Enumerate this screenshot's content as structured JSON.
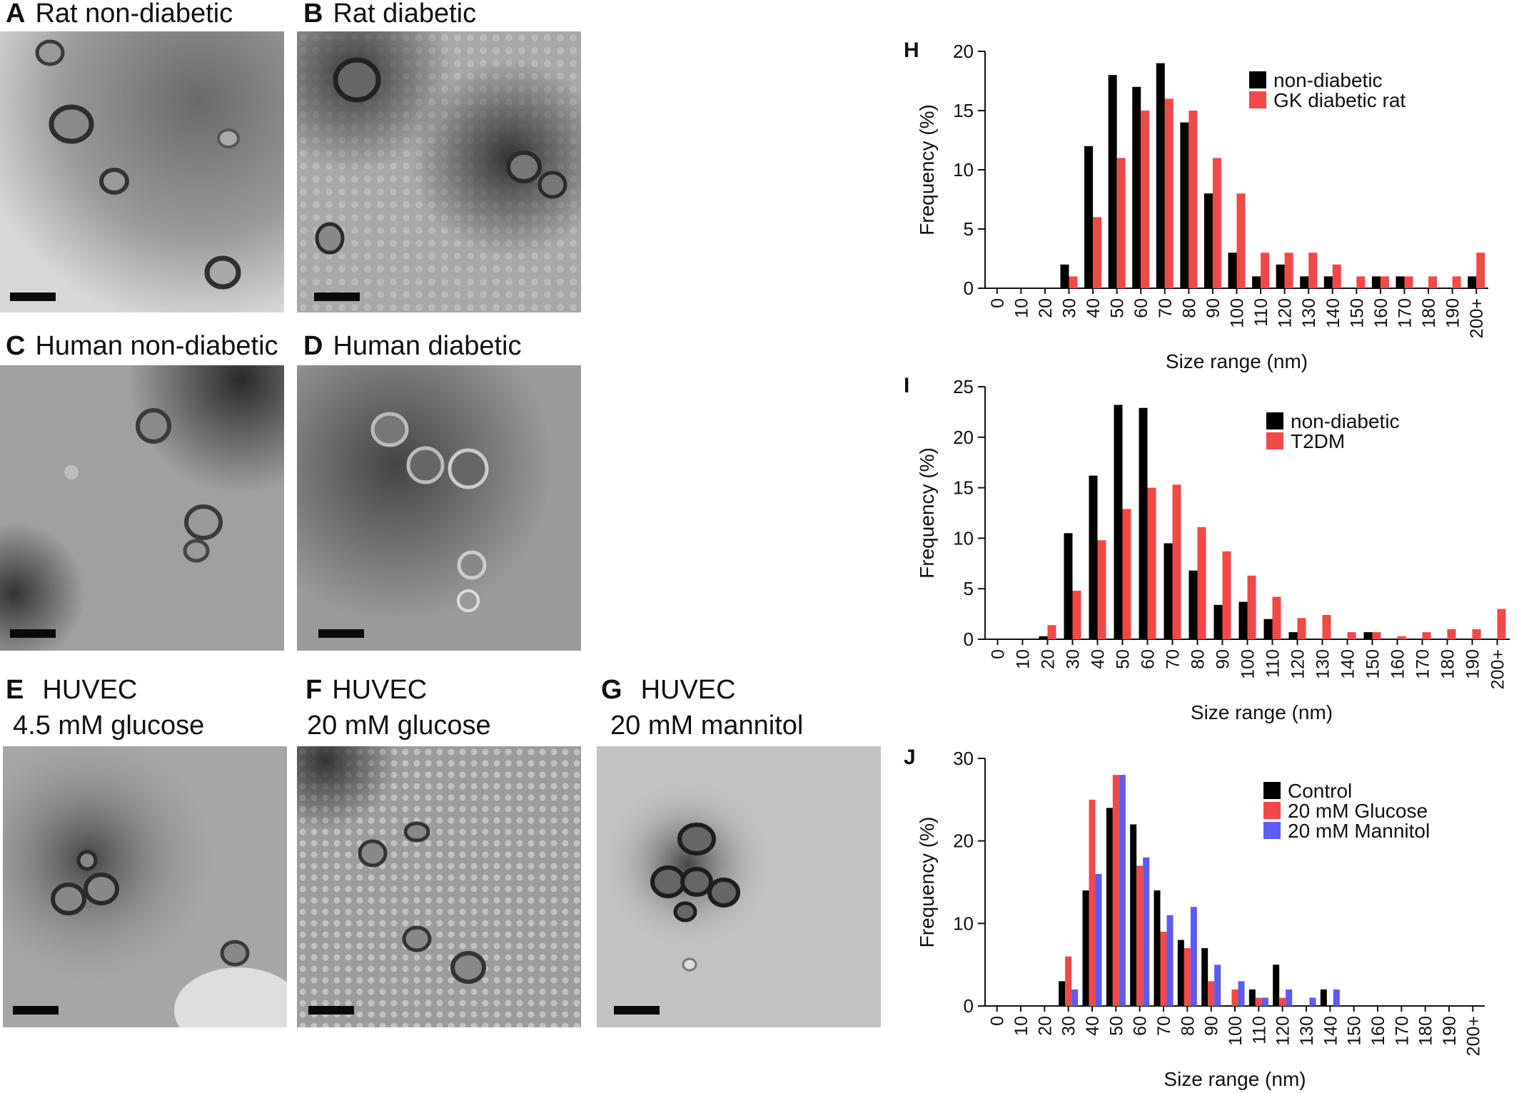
{
  "panels": {
    "A": {
      "letter": "A",
      "title": "Rat non-diabetic"
    },
    "B": {
      "letter": "B",
      "title": "Rat diabetic"
    },
    "C": {
      "letter": "C",
      "title": "Human non-diabetic"
    },
    "D": {
      "letter": "D",
      "title": "Human diabetic"
    },
    "E": {
      "letter": "E",
      "title": "HUVEC",
      "subtitle": "4.5 mM glucose"
    },
    "F": {
      "letter": "F",
      "title": "HUVEC",
      "subtitle": "20 mM glucose"
    },
    "G": {
      "letter": "G",
      "title": "HUVEC",
      "subtitle": "20 mM mannitol"
    }
  },
  "colors": {
    "black": "#000000",
    "red": "#f24848",
    "blue": "#5b5bf5"
  },
  "chart_data": [
    {
      "id": "H",
      "letter": "H",
      "type": "bar",
      "xlabel": "Size range (nm)",
      "ylabel": "Frequency (%)",
      "ylim": [
        0,
        20
      ],
      "yticks": [
        0,
        5,
        10,
        15,
        20
      ],
      "categories": [
        "0",
        "10",
        "20",
        "30",
        "40",
        "50",
        "60",
        "70",
        "80",
        "90",
        "100",
        "110",
        "120",
        "130",
        "140",
        "150",
        "160",
        "170",
        "180",
        "190",
        "200+"
      ],
      "legend_position": "top-right",
      "series": [
        {
          "name": "non-diabetic",
          "color": "#000000",
          "values": [
            0,
            0,
            0,
            2,
            12,
            18,
            17,
            19,
            14,
            8,
            3,
            1,
            2,
            1,
            1,
            0,
            1,
            1,
            0,
            0,
            1
          ]
        },
        {
          "name": "GK diabetic rat",
          "color": "#f24848",
          "values": [
            0,
            0,
            0,
            1,
            6,
            11,
            15,
            16,
            15,
            11,
            8,
            3,
            3,
            3,
            2,
            1,
            1,
            1,
            1,
            1,
            3
          ]
        }
      ]
    },
    {
      "id": "I",
      "letter": "I",
      "type": "bar",
      "xlabel": "Size range (nm)",
      "ylabel": "Frequency (%)",
      "ylim": [
        0,
        25
      ],
      "yticks": [
        0,
        5,
        10,
        15,
        20,
        25
      ],
      "categories": [
        "0",
        "10",
        "20",
        "30",
        "40",
        "50",
        "60",
        "70",
        "80",
        "90",
        "100",
        "110",
        "120",
        "130",
        "140",
        "150",
        "160",
        "170",
        "180",
        "190",
        "200+"
      ],
      "legend_position": "top-right",
      "series": [
        {
          "name": "non-diabetic",
          "color": "#000000",
          "values": [
            0,
            0,
            0.3,
            10.5,
            16.2,
            23.2,
            22.9,
            9.5,
            6.8,
            3.4,
            3.7,
            2,
            0.7,
            0,
            0,
            0.7,
            0,
            0,
            0,
            0,
            0
          ]
        },
        {
          "name": "T2DM",
          "color": "#f24848",
          "values": [
            0,
            0,
            1.4,
            4.8,
            9.8,
            12.9,
            15,
            15.3,
            11.1,
            8.7,
            6.3,
            4.2,
            2.1,
            2.4,
            0.7,
            0.7,
            0.3,
            0.7,
            1,
            1,
            3
          ]
        }
      ]
    },
    {
      "id": "J",
      "letter": "J",
      "type": "bar",
      "xlabel": "Size range (nm)",
      "ylabel": "Frequency (%)",
      "ylim": [
        0,
        30
      ],
      "yticks": [
        0,
        10,
        20,
        30
      ],
      "categories": [
        "0",
        "10",
        "20",
        "30",
        "40",
        "50",
        "60",
        "70",
        "80",
        "90",
        "100",
        "110",
        "120",
        "130",
        "140",
        "150",
        "160",
        "170",
        "180",
        "190",
        "200+"
      ],
      "legend_position": "top-right",
      "series": [
        {
          "name": "Control",
          "color": "#000000",
          "values": [
            0,
            0,
            0,
            3,
            14,
            24,
            22,
            14,
            8,
            7,
            0,
            2,
            5,
            0,
            2,
            0,
            0,
            0,
            0,
            0,
            0
          ]
        },
        {
          "name": "20 mM Glucose",
          "color": "#f24848",
          "values": [
            0,
            0,
            0,
            6,
            25,
            28,
            17,
            9,
            7,
            3,
            2,
            1,
            1,
            0,
            0,
            0,
            0,
            0,
            0,
            0,
            0
          ]
        },
        {
          "name": "20 mM Mannitol",
          "color": "#5b5bf5",
          "values": [
            0,
            0,
            0,
            2,
            16,
            28,
            18,
            11,
            12,
            5,
            3,
            1,
            2,
            1,
            2,
            0,
            0,
            0,
            0,
            0,
            0
          ]
        }
      ]
    }
  ]
}
